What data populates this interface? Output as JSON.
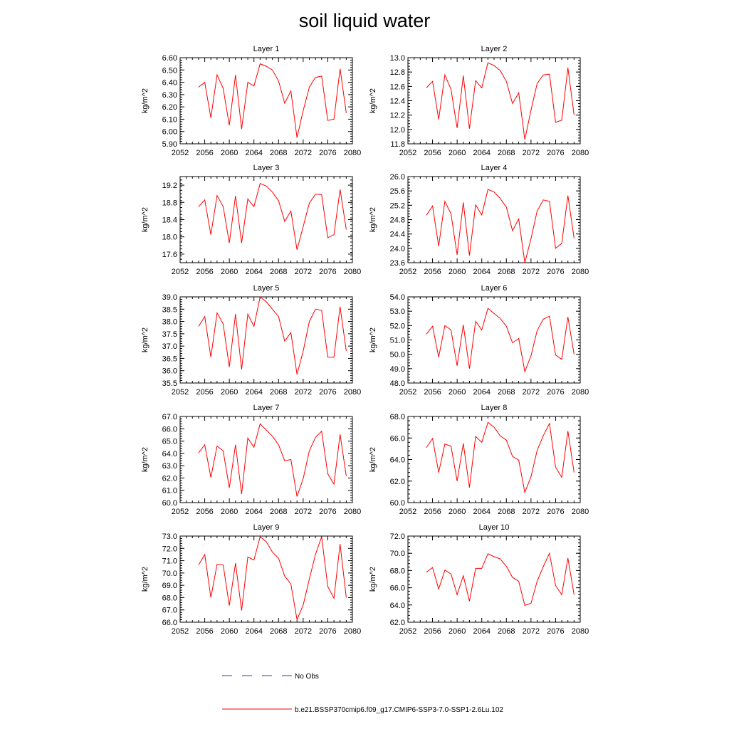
{
  "title": "soil liquid water",
  "legend": {
    "obs_label": "No Obs",
    "model_label": "b.e21.BSSP370cmip6.f09_g17.CMIP6-SSP3-7.0-SSP1-2.6Lu.102",
    "model_color": "#ff0000",
    "obs_color": "#3333cc"
  },
  "chart_data": [
    {
      "type": "line",
      "title": "Layer 1",
      "ylabel": "kg/m^2",
      "xlim": [
        2052,
        2080
      ],
      "ylim": [
        5.9,
        6.6
      ],
      "xticks": [
        "2052",
        "2056",
        "2060",
        "2064",
        "2068",
        "2072",
        "2076",
        "2080"
      ],
      "yticks": [
        "5.90",
        "6.00",
        "6.10",
        "6.20",
        "6.30",
        "6.40",
        "6.50",
        "6.60"
      ],
      "x": [
        2055,
        2056,
        2057,
        2058,
        2059,
        2060,
        2061,
        2062,
        2063,
        2064,
        2065,
        2066,
        2067,
        2068,
        2069,
        2070,
        2071,
        2072,
        2073,
        2074,
        2075,
        2076,
        2077,
        2078,
        2079
      ],
      "series": [
        {
          "values": [
            6.36,
            6.4,
            6.11,
            6.46,
            6.35,
            6.05,
            6.46,
            6.02,
            6.4,
            6.37,
            6.55,
            6.53,
            6.5,
            6.41,
            6.23,
            6.33,
            5.95,
            6.17,
            6.36,
            6.44,
            6.45,
            6.09,
            6.1,
            6.51,
            6.15
          ]
        }
      ]
    },
    {
      "type": "line",
      "title": "Layer 2",
      "ylabel": "kg/m^2",
      "xlim": [
        2052,
        2080
      ],
      "ylim": [
        11.8,
        13.0
      ],
      "xticks": [
        "2052",
        "2056",
        "2060",
        "2064",
        "2068",
        "2072",
        "2076",
        "2080"
      ],
      "yticks": [
        "11.8",
        "12.0",
        "12.2",
        "12.4",
        "12.6",
        "12.8",
        "13.0"
      ],
      "x": [
        2055,
        2056,
        2057,
        2058,
        2059,
        2060,
        2061,
        2062,
        2063,
        2064,
        2065,
        2066,
        2067,
        2068,
        2069,
        2070,
        2071,
        2072,
        2073,
        2074,
        2075,
        2076,
        2077,
        2078,
        2079
      ],
      "series": [
        {
          "values": [
            12.58,
            12.67,
            12.14,
            12.76,
            12.56,
            12.02,
            12.75,
            12.01,
            12.68,
            12.58,
            12.93,
            12.89,
            12.82,
            12.67,
            12.36,
            12.51,
            11.86,
            12.27,
            12.64,
            12.76,
            12.77,
            12.1,
            12.13,
            12.86,
            12.2
          ]
        }
      ]
    },
    {
      "type": "line",
      "title": "Layer 3",
      "ylabel": "kg/m^2",
      "xlim": [
        2052,
        2080
      ],
      "ylim": [
        17.4,
        19.4
      ],
      "xticks": [
        "2052",
        "2056",
        "2060",
        "2064",
        "2068",
        "2072",
        "2076",
        "2080"
      ],
      "yticks": [
        "17.6",
        "18.0",
        "18.4",
        "18.8",
        "19.2"
      ],
      "x": [
        2055,
        2056,
        2057,
        2058,
        2059,
        2060,
        2061,
        2062,
        2063,
        2064,
        2065,
        2066,
        2067,
        2068,
        2069,
        2070,
        2071,
        2072,
        2073,
        2074,
        2075,
        2076,
        2077,
        2078,
        2079
      ],
      "series": [
        {
          "values": [
            18.7,
            18.86,
            18.05,
            18.96,
            18.7,
            17.86,
            18.95,
            17.86,
            18.88,
            18.7,
            19.24,
            19.18,
            19.04,
            18.84,
            18.36,
            18.6,
            17.7,
            18.24,
            18.78,
            18.99,
            18.98,
            17.98,
            18.05,
            19.1,
            18.17
          ]
        }
      ]
    },
    {
      "type": "line",
      "title": "Layer 4",
      "ylabel": "kg/m^2",
      "xlim": [
        2052,
        2080
      ],
      "ylim": [
        23.6,
        26.0
      ],
      "xticks": [
        "2052",
        "2056",
        "2060",
        "2064",
        "2068",
        "2072",
        "2076",
        "2080"
      ],
      "yticks": [
        "23.6",
        "24.0",
        "24.4",
        "24.8",
        "25.2",
        "25.6",
        "26.0"
      ],
      "x": [
        2055,
        2056,
        2057,
        2058,
        2059,
        2060,
        2061,
        2062,
        2063,
        2064,
        2065,
        2066,
        2067,
        2068,
        2069,
        2070,
        2071,
        2072,
        2073,
        2074,
        2075,
        2076,
        2077,
        2078,
        2079
      ],
      "series": [
        {
          "values": [
            24.92,
            25.18,
            24.06,
            25.31,
            24.96,
            23.82,
            25.28,
            23.8,
            25.21,
            24.93,
            25.64,
            25.57,
            25.39,
            25.15,
            24.49,
            24.82,
            23.6,
            24.27,
            25.04,
            25.35,
            25.31,
            24.0,
            24.14,
            25.47,
            24.28
          ]
        }
      ]
    },
    {
      "type": "line",
      "title": "Layer 5",
      "ylabel": "kg/m^2",
      "xlim": [
        2052,
        2080
      ],
      "ylim": [
        35.5,
        39.0
      ],
      "xticks": [
        "2052",
        "2056",
        "2060",
        "2064",
        "2068",
        "2072",
        "2076",
        "2080"
      ],
      "yticks": [
        "35.5",
        "36.0",
        "36.5",
        "37.0",
        "37.5",
        "38.0",
        "38.5",
        "39.0"
      ],
      "x": [
        2055,
        2056,
        2057,
        2058,
        2059,
        2060,
        2061,
        2062,
        2063,
        2064,
        2065,
        2066,
        2067,
        2068,
        2069,
        2070,
        2071,
        2072,
        2073,
        2074,
        2075,
        2076,
        2077,
        2078,
        2079
      ],
      "series": [
        {
          "values": [
            37.8,
            38.2,
            36.55,
            38.35,
            37.9,
            36.15,
            38.3,
            36.05,
            38.3,
            37.8,
            39.0,
            38.8,
            38.5,
            38.2,
            37.2,
            37.55,
            35.85,
            36.8,
            38.0,
            38.5,
            38.45,
            36.55,
            36.55,
            38.6,
            36.8
          ]
        }
      ]
    },
    {
      "type": "line",
      "title": "Layer 6",
      "ylabel": "kg/m^2",
      "xlim": [
        2052,
        2080
      ],
      "ylim": [
        48.0,
        54.0
      ],
      "xticks": [
        "2052",
        "2056",
        "2060",
        "2064",
        "2068",
        "2072",
        "2076",
        "2080"
      ],
      "yticks": [
        "48.0",
        "49.0",
        "50.0",
        "51.0",
        "52.0",
        "53.0",
        "54.0"
      ],
      "x": [
        2055,
        2056,
        2057,
        2058,
        2059,
        2060,
        2061,
        2062,
        2063,
        2064,
        2065,
        2066,
        2067,
        2068,
        2069,
        2070,
        2071,
        2072,
        2073,
        2074,
        2075,
        2076,
        2077,
        2078,
        2079
      ],
      "series": [
        {
          "values": [
            51.4,
            51.95,
            49.8,
            52.0,
            51.7,
            49.2,
            52.05,
            49.0,
            52.3,
            51.7,
            53.2,
            52.85,
            52.5,
            51.95,
            50.8,
            51.1,
            48.8,
            49.9,
            51.65,
            52.45,
            52.65,
            49.95,
            49.65,
            52.6,
            50.0
          ]
        }
      ]
    },
    {
      "type": "line",
      "title": "Layer 7",
      "ylabel": "kg/m^2",
      "xlim": [
        2052,
        2080
      ],
      "ylim": [
        60.0,
        67.0
      ],
      "xticks": [
        "2052",
        "2056",
        "2060",
        "2064",
        "2068",
        "2072",
        "2076",
        "2080"
      ],
      "yticks": [
        "60.0",
        "61.0",
        "62.0",
        "63.0",
        "64.0",
        "65.0",
        "66.0",
        "67.0"
      ],
      "x": [
        2055,
        2056,
        2057,
        2058,
        2059,
        2060,
        2061,
        2062,
        2063,
        2064,
        2065,
        2066,
        2067,
        2068,
        2069,
        2070,
        2071,
        2072,
        2073,
        2074,
        2075,
        2076,
        2077,
        2078,
        2079
      ],
      "series": [
        {
          "values": [
            64.05,
            64.7,
            62.05,
            64.6,
            64.2,
            61.2,
            64.7,
            60.7,
            65.25,
            64.5,
            66.4,
            65.9,
            65.4,
            64.7,
            63.4,
            63.5,
            60.5,
            61.95,
            64.2,
            65.3,
            65.8,
            62.35,
            61.5,
            65.55,
            62.15
          ]
        }
      ]
    },
    {
      "type": "line",
      "title": "Layer 8",
      "ylabel": "kg/m^2",
      "xlim": [
        2052,
        2080
      ],
      "ylim": [
        60.0,
        68.0
      ],
      "xticks": [
        "2052",
        "2056",
        "2060",
        "2064",
        "2068",
        "2072",
        "2076",
        "2080"
      ],
      "yticks": [
        "60.0",
        "62.0",
        "64.0",
        "66.0",
        "68.0"
      ],
      "x": [
        2055,
        2056,
        2057,
        2058,
        2059,
        2060,
        2061,
        2062,
        2063,
        2064,
        2065,
        2066,
        2067,
        2068,
        2069,
        2070,
        2071,
        2072,
        2073,
        2074,
        2075,
        2076,
        2077,
        2078,
        2079
      ],
      "series": [
        {
          "values": [
            65.1,
            65.95,
            62.8,
            65.45,
            65.25,
            62.0,
            65.5,
            61.4,
            66.15,
            65.6,
            67.45,
            67.0,
            66.2,
            65.8,
            64.3,
            63.95,
            60.95,
            62.4,
            64.85,
            66.2,
            67.35,
            63.3,
            62.35,
            66.65,
            62.8
          ]
        }
      ]
    },
    {
      "type": "line",
      "title": "Layer 9",
      "ylabel": "kg/m^2",
      "xlim": [
        2052,
        2080
      ],
      "ylim": [
        66.0,
        73.0
      ],
      "xticks": [
        "2052",
        "2056",
        "2060",
        "2064",
        "2068",
        "2072",
        "2076",
        "2080"
      ],
      "yticks": [
        "66.0",
        "67.0",
        "68.0",
        "69.0",
        "70.0",
        "71.0",
        "72.0",
        "73.0"
      ],
      "x": [
        2055,
        2056,
        2057,
        2058,
        2059,
        2060,
        2061,
        2062,
        2063,
        2064,
        2065,
        2066,
        2067,
        2068,
        2069,
        2070,
        2071,
        2072,
        2073,
        2074,
        2075,
        2076,
        2077,
        2078,
        2079
      ],
      "series": [
        {
          "values": [
            70.65,
            71.5,
            68.0,
            70.7,
            70.65,
            67.35,
            70.8,
            66.95,
            71.3,
            71.05,
            72.95,
            72.55,
            71.7,
            71.2,
            69.75,
            69.1,
            66.2,
            67.4,
            69.5,
            71.5,
            72.95,
            68.9,
            67.95,
            72.35,
            68.0
          ]
        }
      ]
    },
    {
      "type": "line",
      "title": "Layer 10",
      "ylabel": "kg/m^2",
      "xlim": [
        2052,
        2080
      ],
      "ylim": [
        62.0,
        72.0
      ],
      "xticks": [
        "2052",
        "2056",
        "2060",
        "2064",
        "2068",
        "2072",
        "2076",
        "2080"
      ],
      "yticks": [
        "62.0",
        "64.0",
        "66.0",
        "68.0",
        "70.0",
        "72.0"
      ],
      "x": [
        2055,
        2056,
        2057,
        2058,
        2059,
        2060,
        2061,
        2062,
        2063,
        2064,
        2065,
        2066,
        2067,
        2068,
        2069,
        2070,
        2071,
        2072,
        2073,
        2074,
        2075,
        2076,
        2077,
        2078,
        2079
      ],
      "series": [
        {
          "values": [
            67.8,
            68.35,
            65.85,
            68.05,
            67.6,
            65.2,
            67.4,
            64.45,
            68.25,
            68.25,
            69.95,
            69.6,
            69.35,
            68.5,
            67.2,
            66.75,
            63.95,
            64.2,
            66.75,
            68.45,
            70.0,
            66.25,
            65.2,
            69.45,
            65.2
          ]
        }
      ]
    }
  ]
}
